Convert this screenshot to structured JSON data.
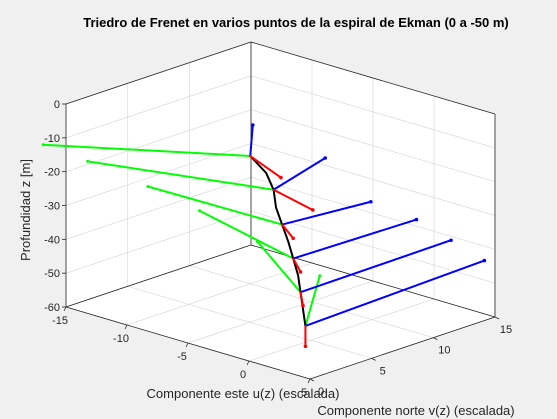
{
  "chart_data": {
    "type": "line3d",
    "title": "Triedro de Frenet en varios puntos de la espiral de Ekman (0 a -50 m)",
    "xlabel": "Componente este u(z) (escalada)",
    "ylabel": "Componente norte v(z) (escalada)",
    "zlabel": "Profundidad z [m]",
    "xlim": [
      -15,
      5
    ],
    "ylim": [
      0,
      15
    ],
    "zlim": [
      -60,
      0
    ],
    "xticks": [
      -15,
      -10,
      -5,
      0,
      5
    ],
    "yticks": [
      0,
      5,
      10,
      15
    ],
    "zticks": [
      0,
      -10,
      -20,
      -30,
      -40,
      -50,
      -60
    ],
    "grid": true,
    "colors": {
      "spiral": "#000000",
      "tangent": "#ff0000",
      "normal": "#00ff00",
      "binormal": "#0000ff"
    },
    "spiral": [
      [
        -0.2,
        0.3,
        0
      ],
      [
        0.5,
        0.9,
        -5
      ],
      [
        0.8,
        1.2,
        -10
      ],
      [
        1.0,
        1.2,
        -15
      ],
      [
        1.3,
        1.4,
        -20
      ],
      [
        1.6,
        1.6,
        -25
      ],
      [
        1.8,
        1.8,
        -30
      ],
      [
        2.0,
        2.0,
        -35
      ],
      [
        2.1,
        2.1,
        -40
      ],
      [
        2.2,
        2.2,
        -45
      ],
      [
        2.3,
        2.3,
        -50
      ]
    ],
    "frames": [
      {
        "z": 0,
        "point": [
          -0.2,
          0.3,
          0
        ],
        "tangent": [
          1.5,
          1.0,
          -6
        ],
        "normal": [
          -10.5,
          -6.4,
          0
        ],
        "binormal": [
          -0.4,
          0.6,
          8
        ]
      },
      {
        "z": -10,
        "point": [
          0.8,
          1.2,
          -10
        ],
        "tangent": [
          1.7,
          1.5,
          -6
        ],
        "normal": [
          -11.8,
          -3.4,
          0
        ],
        "binormal": [
          1.2,
          3.0,
          7
        ]
      },
      {
        "z": -20,
        "point": [
          1.3,
          1.4,
          -20
        ],
        "tangent": [
          0.5,
          0.4,
          -4
        ],
        "normal": [
          -10.8,
          -0.2,
          0
        ],
        "binormal": [
          0.9,
          6.3,
          0
        ]
      },
      {
        "z": -30,
        "point": [
          1.8,
          1.8,
          -30
        ],
        "tangent": [
          0.3,
          0.3,
          -4
        ],
        "normal": [
          -10.3,
          2.6,
          0
        ],
        "binormal": [
          0.3,
          9.7,
          0
        ]
      },
      {
        "z": -40,
        "point": [
          2.1,
          2.1,
          -40
        ],
        "tangent": [
          0.1,
          0.1,
          -4
        ],
        "normal": [
          -8.5,
          4.9,
          0
        ],
        "binormal": [
          -0.2,
          12.4,
          0
        ]
      },
      {
        "z": -50,
        "point": [
          2.3,
          2.3,
          -50
        ],
        "tangent": [
          0.0,
          0.0,
          -6
        ],
        "normal": [
          -5.9,
          7.0,
          0
        ],
        "binormal": [
          -0.7,
          15.2,
          0
        ]
      }
    ]
  }
}
